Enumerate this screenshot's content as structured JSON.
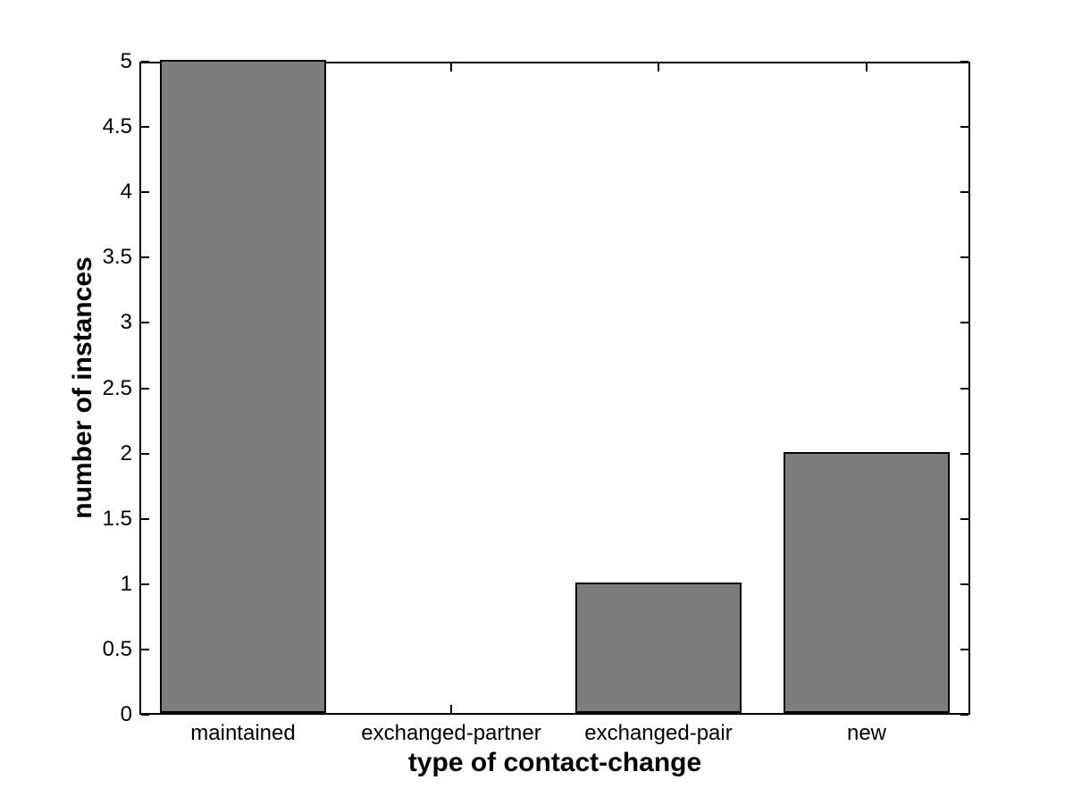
{
  "figure": {
    "background_color": "#ffffff",
    "axis_color": "#000000",
    "text_color": "#000000"
  },
  "chart_data": {
    "type": "bar",
    "title": "",
    "xlabel": "type of contact-change",
    "ylabel": "number of instances",
    "categories": [
      "maintained",
      "exchanged-partner",
      "exchanged-pair",
      "new"
    ],
    "values": [
      5,
      0,
      1,
      2
    ],
    "ylim": [
      0,
      5
    ],
    "yticks": [
      0,
      0.5,
      1,
      1.5,
      2,
      2.5,
      3,
      3.5,
      4,
      4.5,
      5
    ],
    "ytick_labels": [
      "0",
      "0.5",
      "1",
      "1.5",
      "2",
      "2.5",
      "3",
      "3.5",
      "4",
      "4.5",
      "5"
    ],
    "bar_rel_width": 0.8,
    "bar_color": "#7d7d7d",
    "bar_edge_color": "#000000",
    "grid": false,
    "legend": null,
    "box": true,
    "tick_direction": "in"
  }
}
